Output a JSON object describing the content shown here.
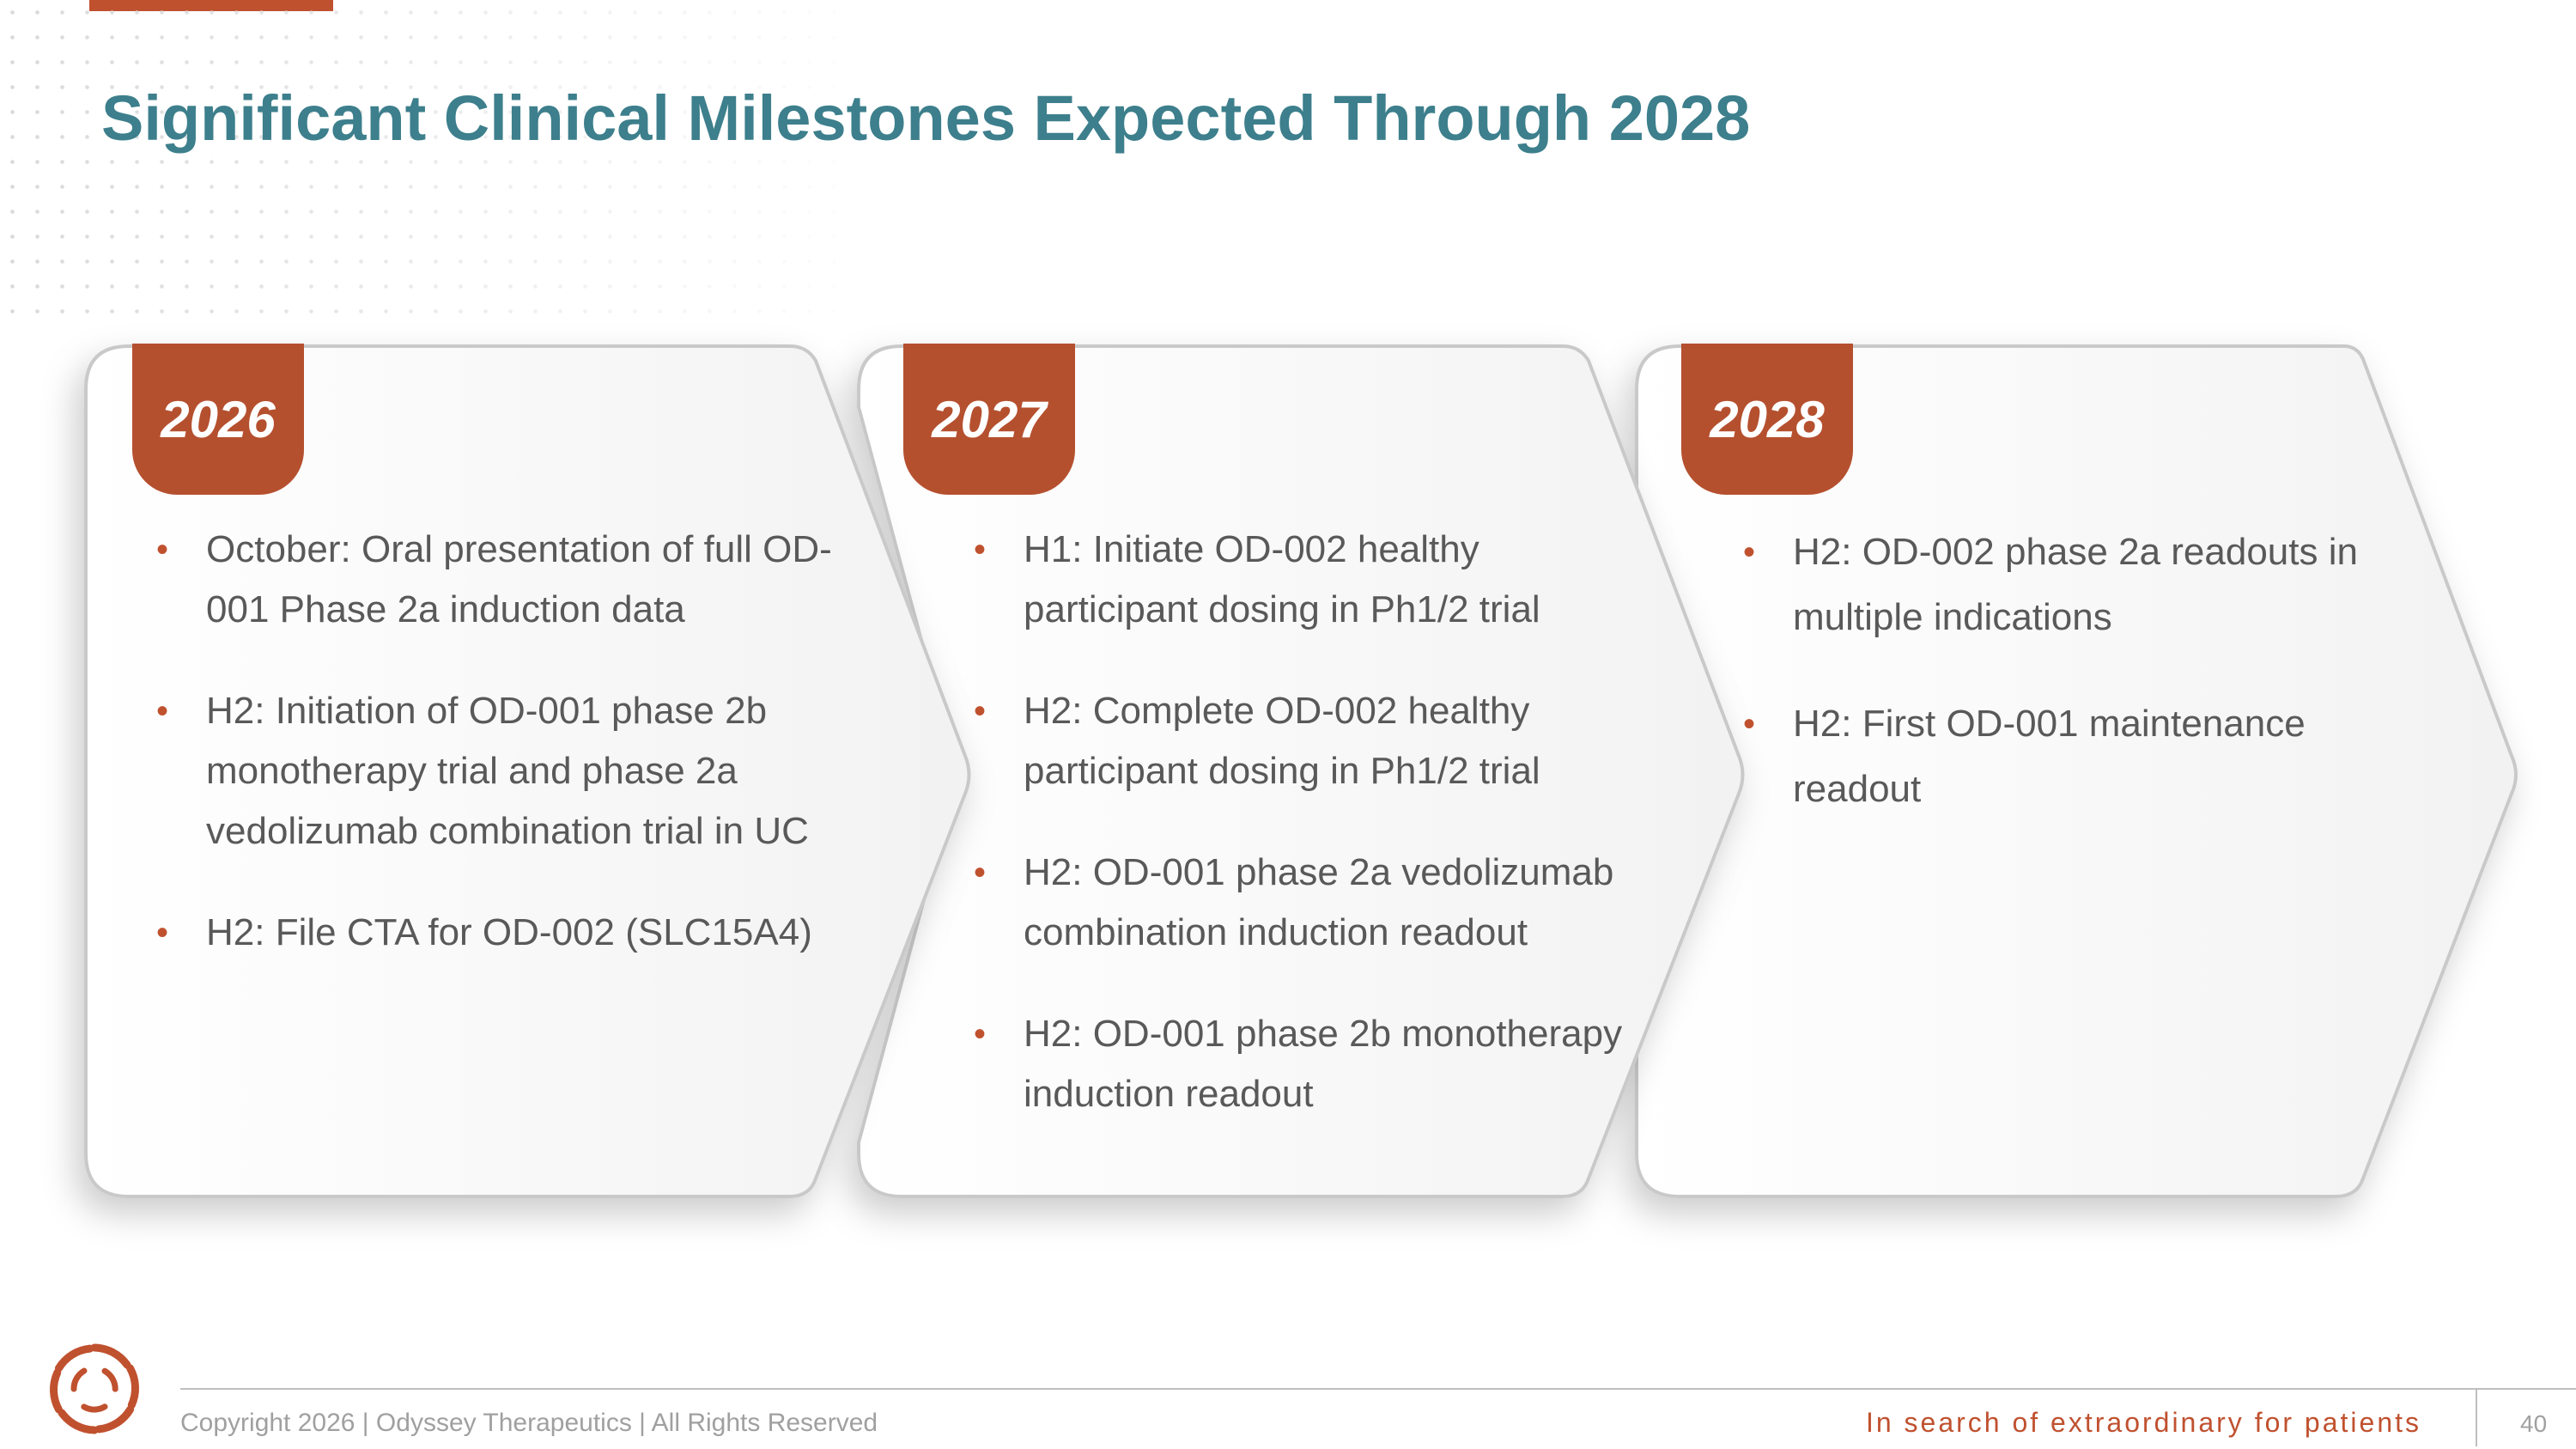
{
  "slide": {
    "title": "Significant Clinical Milestones Expected Through 2028",
    "accent_color": "#c0512f",
    "title_color": "#3d7f8c",
    "tab_color": "#b5502f"
  },
  "columns": [
    {
      "year": "2026",
      "items": [
        "October: Oral presentation of full OD-001 Phase 2a induction data",
        "H2: Initiation of OD-001 phase 2b monotherapy trial and phase 2a vedolizumab combination trial in UC",
        "H2: File CTA for OD-002 (SLC15A4)"
      ]
    },
    {
      "year": "2027",
      "items": [
        "H1: Initiate OD-002 healthy participant dosing in Ph1/2 trial",
        "H2: Complete OD-002 healthy participant dosing in Ph1/2 trial",
        "H2: OD-001 phase 2a vedolizumab combination induction readout",
        "H2: OD-001 phase 2b monotherapy induction readout"
      ]
    },
    {
      "year": "2028",
      "items": [
        "H2: OD-002 phase 2a readouts in multiple indications",
        "H2: First OD-001 maintenance readout"
      ]
    }
  ],
  "footer": {
    "copyright": "Copyright 2026  |  Odyssey Therapeutics  |  All Rights Reserved",
    "tagline": "In search of extraordinary for patients",
    "page_number": "40"
  },
  "icons": {
    "logo": "odyssey-swirl-logo-icon",
    "bullet": "bullet-dot-icon"
  }
}
